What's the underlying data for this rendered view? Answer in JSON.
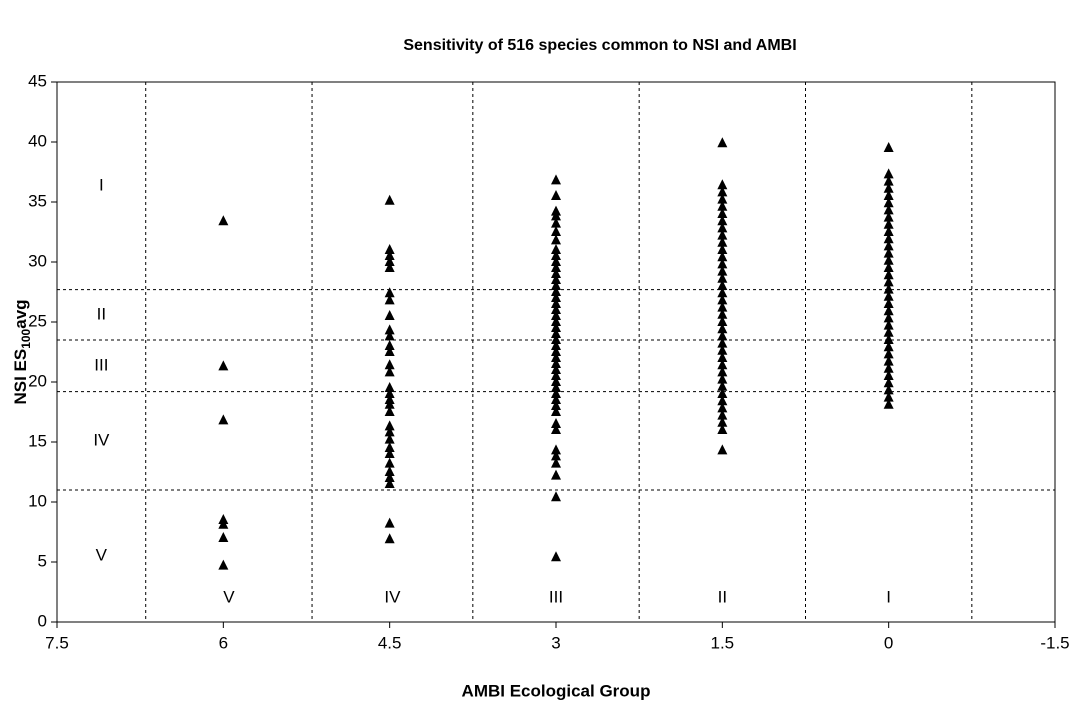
{
  "chart_data": {
    "type": "scatter",
    "title": "Sensitivity of 516 species common to NSI and AMBI",
    "x_label": "AMBI Ecological Group",
    "y_label": [
      "NSI ES",
      "100",
      "avg"
    ],
    "xlim": [
      7.5,
      -1.5
    ],
    "xticks": [
      7.5,
      6,
      4.5,
      3,
      1.5,
      0,
      -1.5
    ],
    "ylim": [
      0,
      45
    ],
    "yticks": [
      0,
      5,
      10,
      15,
      20,
      25,
      30,
      35,
      40,
      45
    ],
    "zone_lines_x": [
      6.7,
      5.2,
      3.75,
      2.25,
      0.75,
      -0.75
    ],
    "zone_lines_y": [
      27.7,
      23.5,
      19.2,
      11
    ],
    "y_groups": [
      "I",
      "II",
      "III",
      "IV",
      "V"
    ],
    "x_groups": [
      "V",
      "IV",
      "III",
      "II",
      "I"
    ],
    "marker_color": "#000000",
    "series": [
      {
        "x": [
          6,
          6,
          6,
          6,
          6,
          6,
          6
        ],
        "values": [
          33.4,
          21.3,
          16.8,
          8.5,
          8.1,
          7,
          4.7
        ]
      },
      {
        "x": [
          4.5,
          4.5,
          4.5,
          4.5,
          4.5,
          4.5,
          4.5,
          4.5,
          4.5,
          4.5,
          4.5,
          4.5,
          4.5,
          4.5,
          4.5,
          4.5,
          4.5,
          4.5,
          4.5,
          4.5,
          4.5,
          4.5,
          4.5,
          4.5,
          4.5,
          4.5,
          4.5,
          4.5,
          4.5,
          4.5
        ],
        "values": [
          35.1,
          31,
          30.5,
          30,
          29.5,
          27.4,
          26.8,
          25.5,
          24.3,
          23.8,
          23,
          22.5,
          21.4,
          20.8,
          19.5,
          19,
          18.5,
          18.1,
          17.5,
          16.3,
          15.8,
          15.2,
          14.5,
          14,
          13.2,
          12.5,
          12,
          11.5,
          8.2,
          6.9
        ]
      },
      {
        "x": [
          3,
          3,
          3,
          3,
          3,
          3,
          3,
          3,
          3,
          3,
          3,
          3,
          3,
          3,
          3,
          3,
          3,
          3,
          3,
          3,
          3,
          3,
          3,
          3,
          3,
          3,
          3,
          3,
          3,
          3,
          3,
          3,
          3,
          3,
          3,
          3,
          3,
          3,
          3,
          3,
          3,
          3,
          3
        ],
        "values": [
          36.8,
          35.5,
          34.2,
          33.8,
          33.2,
          32.5,
          31.8,
          31,
          30.5,
          30,
          29.5,
          29,
          28.5,
          28,
          27.5,
          27,
          26.5,
          26,
          25.5,
          25,
          24.5,
          24,
          23.5,
          23,
          22.5,
          22,
          21.5,
          21,
          20.5,
          20,
          19.5,
          19,
          18.5,
          18,
          17.5,
          16.5,
          16,
          14.3,
          13.8,
          13.2,
          12.2,
          10.4,
          5.4
        ]
      },
      {
        "x": [
          1.5,
          1.5,
          1.5,
          1.5,
          1.5,
          1.5,
          1.5,
          1.5,
          1.5,
          1.5,
          1.5,
          1.5,
          1.5,
          1.5,
          1.5,
          1.5,
          1.5,
          1.5,
          1.5,
          1.5,
          1.5,
          1.5,
          1.5,
          1.5,
          1.5,
          1.5,
          1.5,
          1.5,
          1.5,
          1.5,
          1.5,
          1.5,
          1.5,
          1.5,
          1.5,
          1.5,
          1.5
        ],
        "values": [
          39.9,
          36.4,
          35.8,
          35.2,
          34.6,
          34.0,
          33.4,
          32.8,
          32.2,
          31.6,
          31.0,
          30.4,
          29.8,
          29.2,
          28.6,
          28.0,
          27.4,
          26.8,
          26.2,
          25.6,
          25.0,
          24.4,
          23.8,
          23.2,
          22.6,
          22.0,
          21.4,
          20.8,
          20.2,
          19.6,
          19.0,
          18.4,
          17.8,
          17.2,
          16.6,
          16.0,
          14.3
        ]
      },
      {
        "x": [
          0,
          0,
          0,
          0,
          0,
          0,
          0,
          0,
          0,
          0,
          0,
          0,
          0,
          0,
          0,
          0,
          0,
          0,
          0,
          0,
          0,
          0,
          0,
          0,
          0,
          0,
          0,
          0,
          0,
          0,
          0,
          0,
          0,
          0
        ],
        "values": [
          39.5,
          37.3,
          36.7,
          36.1,
          35.5,
          34.9,
          34.3,
          33.7,
          33.1,
          32.5,
          31.9,
          31.3,
          30.7,
          30.1,
          29.5,
          28.9,
          28.3,
          27.7,
          27.1,
          26.5,
          25.9,
          25.3,
          24.7,
          24.1,
          23.5,
          22.9,
          22.3,
          21.7,
          21.1,
          20.5,
          19.9,
          19.3,
          18.7,
          18.1
        ]
      }
    ]
  }
}
